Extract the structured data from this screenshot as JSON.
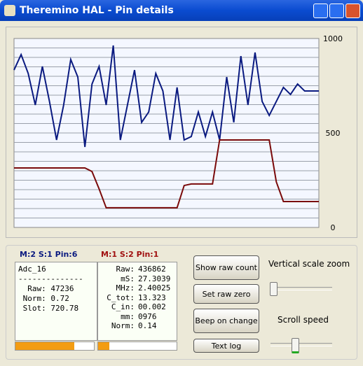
{
  "window": {
    "title": "Theremino HAL - Pin details"
  },
  "chart_data": {
    "type": "line",
    "ylim": [
      0,
      1000
    ],
    "yticks": [
      0,
      500,
      1000
    ],
    "grid_lines": [
      50,
      100,
      150,
      200,
      250,
      300,
      350,
      400,
      450,
      500,
      550,
      600,
      650,
      700,
      750,
      800,
      850,
      900,
      950
    ],
    "series": [
      {
        "color": "#0a1a80",
        "values": [
          833,
          915,
          815,
          648,
          852,
          667,
          463,
          648,
          889,
          796,
          426,
          759,
          852,
          648,
          963,
          463,
          648,
          833,
          556,
          611,
          815,
          722,
          463,
          741,
          463,
          481,
          611,
          481,
          611,
          463,
          796,
          556,
          907,
          648,
          926,
          667,
          593,
          667,
          741,
          704,
          759,
          722,
          722,
          722
        ]
      },
      {
        "color": "#7a0a0a",
        "values": [
          315,
          315,
          315,
          315,
          315,
          315,
          315,
          315,
          315,
          315,
          315,
          296,
          204,
          104,
          104,
          104,
          104,
          104,
          104,
          104,
          104,
          104,
          104,
          104,
          222,
          230,
          230,
          230,
          230,
          463,
          463,
          463,
          463,
          463,
          463,
          463,
          463,
          241,
          137,
          137,
          137,
          137,
          137,
          137
        ]
      }
    ]
  },
  "panel1": {
    "header": "M:2 S:1 Pin:6",
    "lines": [
      "Adc_16",
      "--------------",
      "  Raw: 47236",
      " Norm: 0.72",
      " Slot: 720.78"
    ]
  },
  "panel2": {
    "header": "M:1 S:2 Pin:1",
    "rows": [
      [
        "Raw:",
        "436862"
      ],
      [
        "mS:",
        "27.3039"
      ],
      [
        "MHz:",
        "2.40025"
      ],
      [
        "C_tot:",
        "13.323"
      ],
      [
        "C_in:",
        "00.002"
      ],
      [
        "mm:",
        "0976"
      ],
      [
        "Norm:",
        "0.14"
      ]
    ]
  },
  "buttons": [
    "Show raw count",
    "Set raw zero",
    "Beep on change",
    "Text log"
  ],
  "sliders": [
    "Vertical scale zoom",
    "Scroll speed"
  ]
}
